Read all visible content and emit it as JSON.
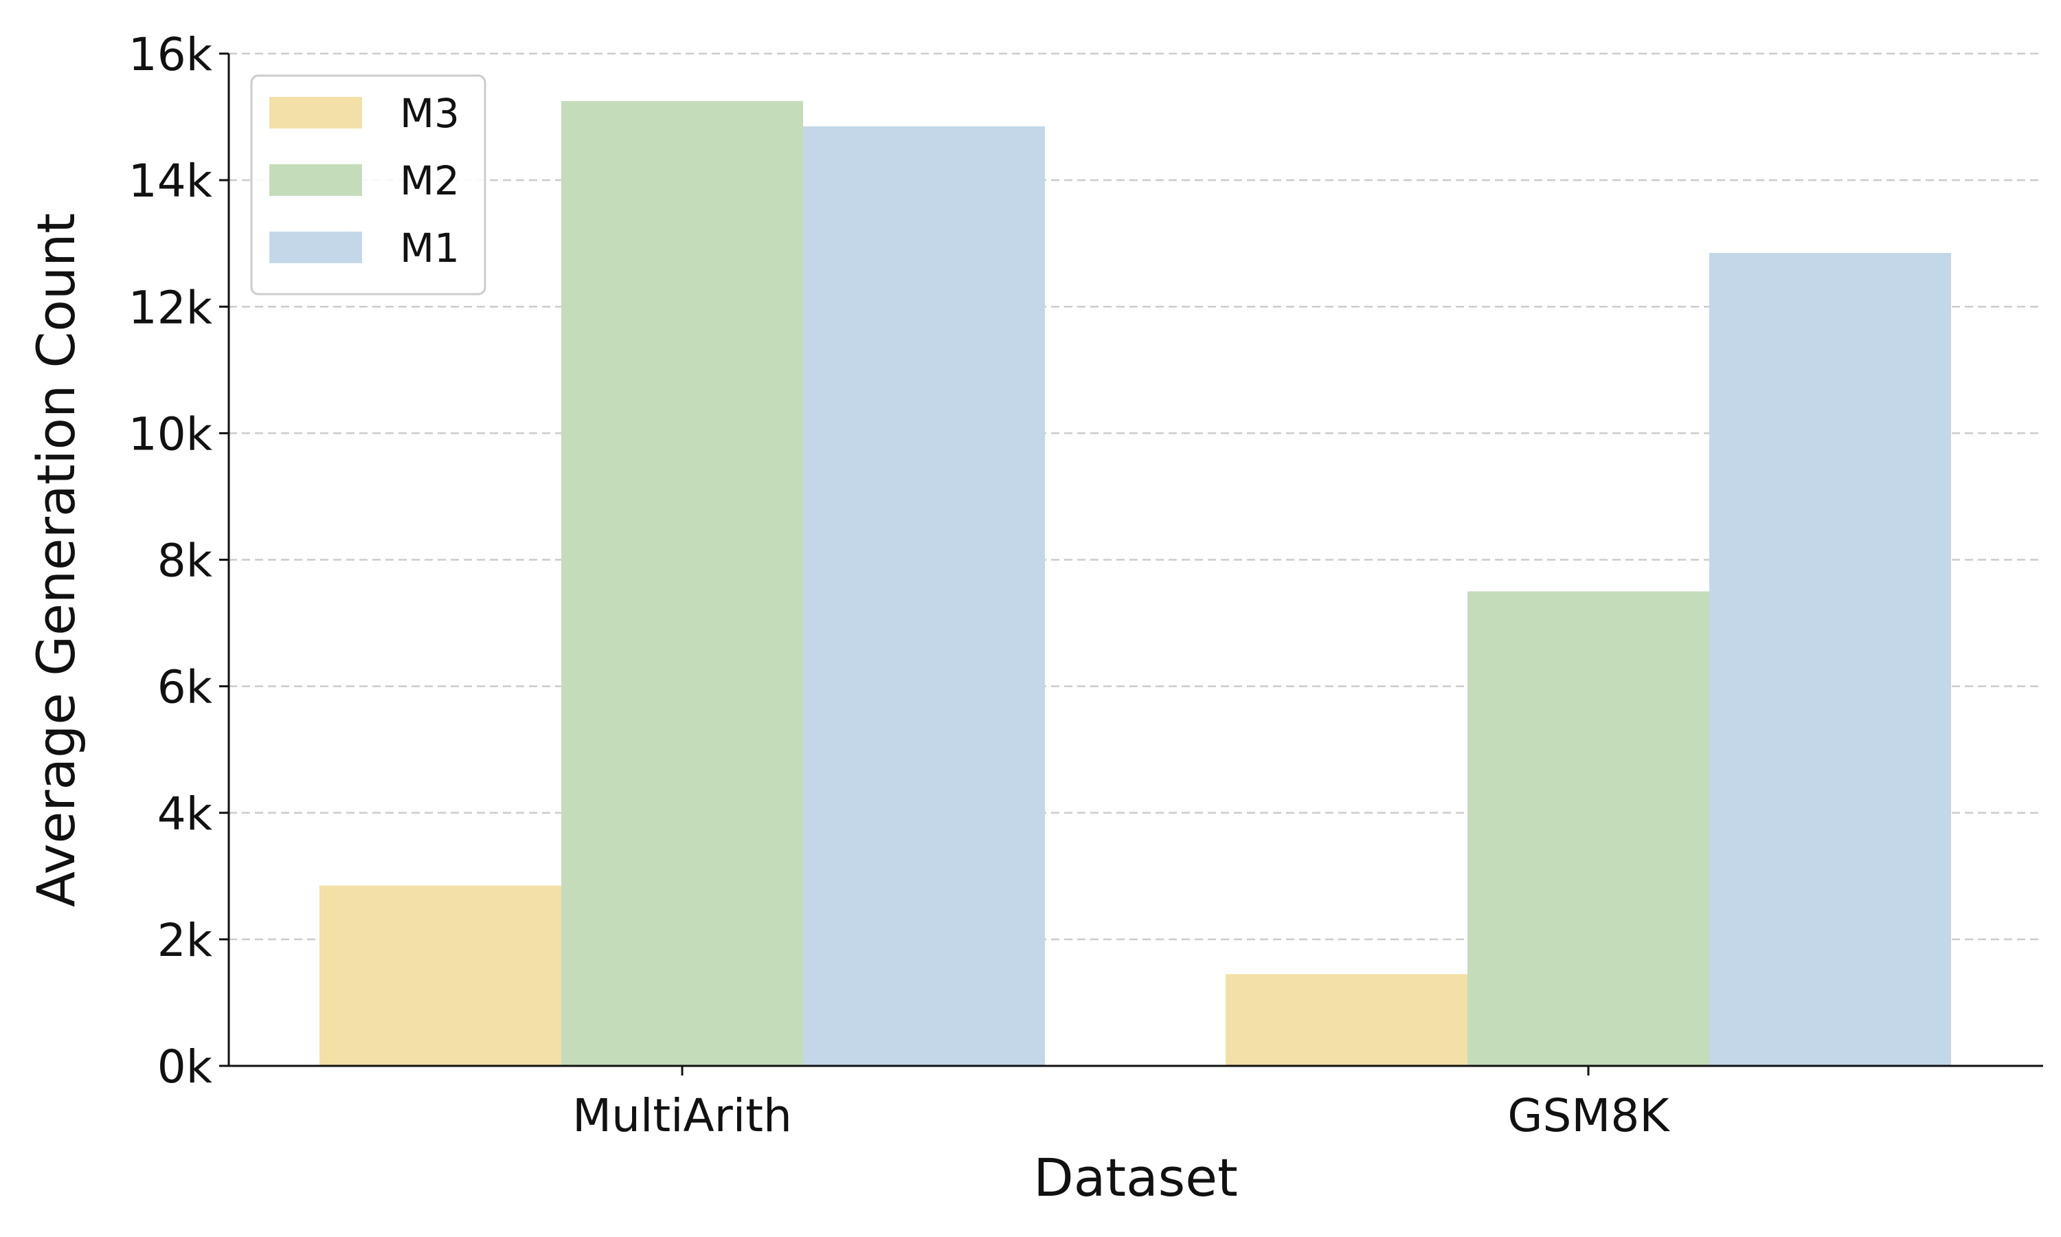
{
  "chart_data": {
    "type": "bar",
    "categories": [
      "MultiArith",
      "GSM8K"
    ],
    "series": [
      {
        "name": "M3",
        "color": "#f3e0a6",
        "values": [
          2850,
          1450
        ]
      },
      {
        "name": "M2",
        "color": "#c5dcba",
        "values": [
          15250,
          7500
        ]
      },
      {
        "name": "M1",
        "color": "#c3d7e8",
        "values": [
          14850,
          12850
        ]
      }
    ],
    "xlabel": "Dataset",
    "ylabel": "Average Generation Count",
    "ylim": [
      0,
      16000
    ],
    "yticks": [
      0,
      2000,
      4000,
      6000,
      8000,
      10000,
      12000,
      14000,
      16000
    ],
    "ytick_labels": [
      "0k",
      "2k",
      "4k",
      "6k",
      "8k",
      "10k",
      "12k",
      "14k",
      "16k"
    ],
    "grid": "horizontal-dashed",
    "legend_position": "top-left"
  }
}
